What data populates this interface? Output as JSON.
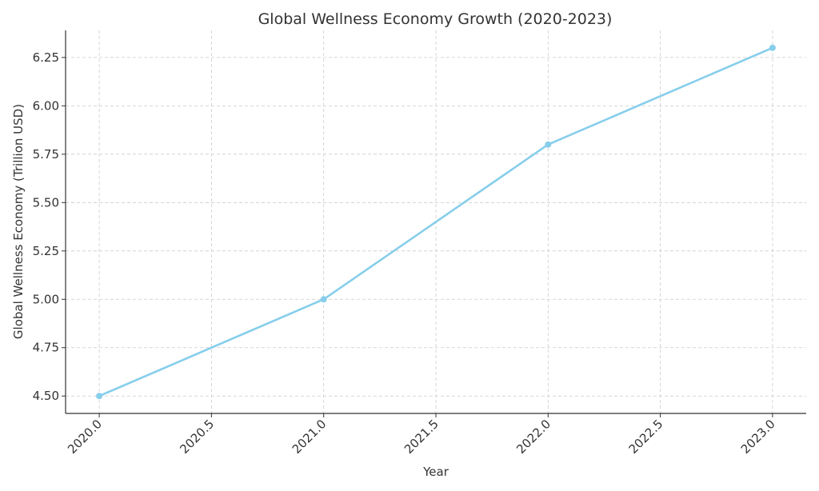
{
  "chart_data": {
    "type": "line",
    "title": "Global Wellness Economy Growth (2020-2023)",
    "xlabel": "Year",
    "ylabel": "Global Wellness Economy (Trillion USD)",
    "x": [
      2020,
      2021,
      2022,
      2023
    ],
    "series": [
      {
        "values": [
          4.5,
          5.0,
          5.8,
          6.3
        ],
        "color": "#87CEEB",
        "marker": "circle"
      }
    ],
    "xlim": [
      2019.85,
      2023.15
    ],
    "ylim": [
      4.41,
      6.39
    ],
    "x_ticks": [
      "2020.0",
      "2020.5",
      "2021.0",
      "2021.5",
      "2022.0",
      "2022.5",
      "2023.0"
    ],
    "y_ticks": [
      "4.50",
      "4.75",
      "5.00",
      "5.25",
      "5.50",
      "5.75",
      "6.00",
      "6.25"
    ],
    "x_tick_values": [
      2020.0,
      2020.5,
      2021.0,
      2021.5,
      2022.0,
      2022.5,
      2023.0
    ],
    "y_tick_values": [
      4.5,
      4.75,
      5.0,
      5.25,
      5.5,
      5.75,
      6.0,
      6.25
    ],
    "x_tick_rotation_deg": 45,
    "grid": true,
    "grid_style": "dashed",
    "legend": "none"
  }
}
